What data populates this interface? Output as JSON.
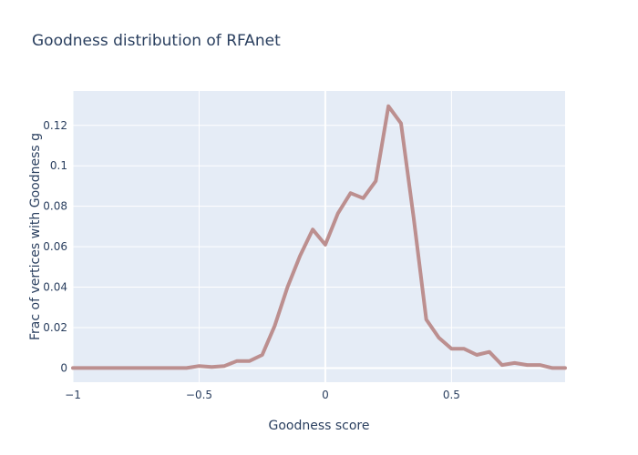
{
  "chart_data": {
    "type": "line",
    "title": "Goodness distribution of RFAnet",
    "xlabel": "Goodness score",
    "ylabel": "Frac of vertices with Goodness g",
    "xlim": [
      -1.0,
      0.95
    ],
    "ylim": [
      -0.007,
      0.137
    ],
    "x_ticks": [
      -1,
      -0.5,
      0,
      0.5
    ],
    "x_tick_labels": [
      "−1",
      "−0.5",
      "0",
      "0.5"
    ],
    "y_ticks": [
      0,
      0.02,
      0.04,
      0.06,
      0.08,
      0.1,
      0.12
    ],
    "y_tick_labels": [
      "0",
      "0.02",
      "0.04",
      "0.06",
      "0.08",
      "0.1",
      "0.12"
    ],
    "grid": true,
    "colors": {
      "plot_background": "#e5ecf6",
      "grid": "#ffffff",
      "line": "#bc8f8f"
    },
    "series": [
      {
        "x": [
          -1.0,
          -0.95,
          -0.9,
          -0.85,
          -0.8,
          -0.75,
          -0.7,
          -0.65,
          -0.6,
          -0.55,
          -0.5,
          -0.45,
          -0.4,
          -0.35,
          -0.3,
          -0.25,
          -0.2,
          -0.15,
          -0.1,
          -0.05,
          0.0,
          0.05,
          0.1,
          0.15,
          0.2,
          0.25,
          0.3,
          0.35,
          0.4,
          0.45,
          0.5,
          0.55,
          0.6,
          0.65,
          0.7,
          0.75,
          0.8,
          0.85,
          0.9,
          0.95
        ],
        "values": [
          0,
          0,
          0,
          0,
          0,
          0,
          0,
          0,
          0,
          0,
          0.001,
          0.0005,
          0.001,
          0.0035,
          0.0035,
          0.0065,
          0.021,
          0.04,
          0.0555,
          0.0685,
          0.061,
          0.0765,
          0.0865,
          0.084,
          0.0925,
          0.1295,
          0.121,
          0.0745,
          0.024,
          0.015,
          0.0095,
          0.0095,
          0.0065,
          0.008,
          0.0015,
          0.0025,
          0.0015,
          0.0015,
          0,
          0
        ]
      }
    ]
  }
}
